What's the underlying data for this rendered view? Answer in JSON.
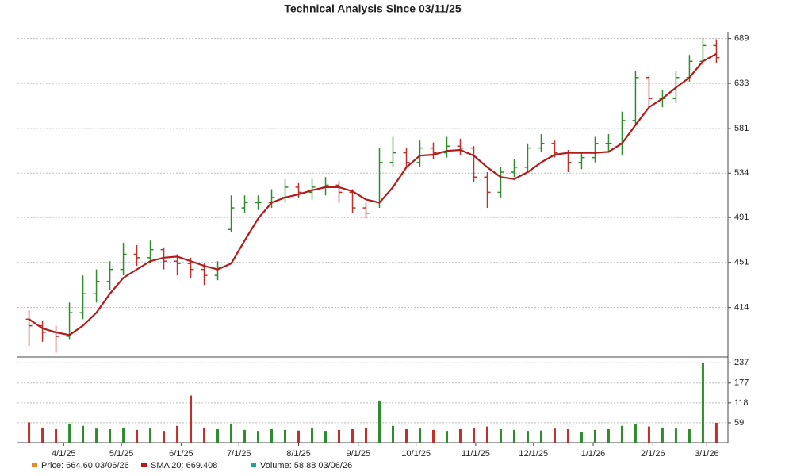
{
  "chart_data": {
    "type": "ohlc",
    "title": "Technical Analysis Since 03/11/25",
    "x": [
      "2025-03-14",
      "2025-03-21",
      "2025-03-28",
      "2025-04-04",
      "2025-04-11",
      "2025-04-18",
      "2025-04-25",
      "2025-05-02",
      "2025-05-09",
      "2025-05-16",
      "2025-05-23",
      "2025-05-30",
      "2025-06-06",
      "2025-06-13",
      "2025-06-20",
      "2025-06-27",
      "2025-07-04",
      "2025-07-11",
      "2025-07-18",
      "2025-07-25",
      "2025-08-01",
      "2025-08-08",
      "2025-08-15",
      "2025-08-22",
      "2025-08-29",
      "2025-09-05",
      "2025-09-12",
      "2025-09-19",
      "2025-09-26",
      "2025-10-03",
      "2025-10-10",
      "2025-10-17",
      "2025-10-24",
      "2025-10-31",
      "2025-11-07",
      "2025-11-14",
      "2025-11-21",
      "2025-11-28",
      "2025-12-05",
      "2025-12-12",
      "2025-12-19",
      "2025-12-26",
      "2026-01-02",
      "2026-01-09",
      "2026-01-16",
      "2026-01-23",
      "2026-01-30",
      "2026-02-06",
      "2026-02-13",
      "2026-02-20",
      "2026-02-27",
      "2026-03-06"
    ],
    "open": [
      405,
      400,
      395,
      392,
      410,
      425,
      435,
      445,
      458,
      455,
      462,
      452,
      450,
      445,
      440,
      480,
      500,
      505,
      505,
      510,
      520,
      515,
      520,
      522,
      515,
      500,
      505,
      545,
      555,
      545,
      560,
      555,
      562,
      560,
      530,
      515,
      535,
      540,
      560,
      565,
      555,
      545,
      550,
      565,
      565,
      590,
      640,
      615,
      615,
      640,
      660,
      680
    ],
    "high": [
      412,
      404,
      400,
      418,
      440,
      445,
      452,
      468,
      466,
      470,
      464,
      458,
      455,
      450,
      452,
      512,
      512,
      512,
      518,
      528,
      524,
      528,
      530,
      526,
      518,
      505,
      560,
      572,
      560,
      568,
      566,
      572,
      570,
      562,
      535,
      540,
      548,
      565,
      575,
      568,
      558,
      556,
      572,
      575,
      600,
      648,
      642,
      625,
      648,
      668,
      690,
      688
    ],
    "low": [
      385,
      388,
      380,
      390,
      405,
      418,
      428,
      440,
      448,
      450,
      445,
      440,
      438,
      432,
      436,
      478,
      495,
      498,
      500,
      505,
      510,
      508,
      512,
      505,
      495,
      490,
      500,
      540,
      540,
      540,
      548,
      550,
      552,
      525,
      500,
      510,
      530,
      535,
      556,
      550,
      535,
      538,
      545,
      555,
      552,
      585,
      605,
      605,
      610,
      635,
      655,
      658
    ],
    "close": [
      400,
      395,
      392,
      410,
      425,
      435,
      445,
      458,
      455,
      462,
      452,
      450,
      445,
      440,
      447,
      500,
      505,
      505,
      510,
      520,
      515,
      520,
      522,
      515,
      500,
      495,
      545,
      555,
      545,
      560,
      555,
      562,
      560,
      530,
      515,
      535,
      540,
      560,
      565,
      555,
      545,
      550,
      565,
      565,
      590,
      640,
      615,
      615,
      640,
      660,
      680,
      664.6
    ],
    "up_color": "#2e8b2e",
    "down_color": "#c0302a",
    "sma": {
      "color": "#b01c1c",
      "values": [
        405,
        398,
        395,
        393,
        400,
        410,
        425,
        438,
        445,
        452,
        455,
        456,
        452,
        448,
        445,
        450,
        470,
        490,
        505,
        510,
        513,
        517,
        520,
        520,
        516,
        508,
        505,
        520,
        540,
        552,
        553,
        557,
        558,
        552,
        540,
        530,
        528,
        535,
        545,
        553,
        555,
        555,
        555,
        556,
        565,
        585,
        605,
        615,
        628,
        640,
        660,
        669.408
      ]
    },
    "volume": {
      "values": [
        60,
        45,
        40,
        55,
        50,
        42,
        40,
        45,
        38,
        42,
        35,
        50,
        140,
        45,
        40,
        55,
        38,
        35,
        40,
        38,
        36,
        42,
        35,
        38,
        40,
        45,
        125,
        50,
        40,
        42,
        38,
        35,
        40,
        45,
        48,
        40,
        38,
        35,
        36,
        42,
        40,
        32,
        38,
        40,
        50,
        55,
        48,
        45,
        42,
        40,
        237,
        58.88
      ],
      "ylim": [
        0,
        240
      ],
      "yticks": [
        59,
        118,
        177,
        237
      ]
    },
    "ylim": [
      377,
      698
    ],
    "yticks": [
      414,
      451,
      491,
      534,
      581,
      633,
      689
    ],
    "log_scale": true,
    "grid": true,
    "xlim": [
      "2025-03-08",
      "2026-03-12"
    ],
    "xticks": [
      {
        "value": "2025-04-01",
        "label": "4/1/25"
      },
      {
        "value": "2025-05-01",
        "label": "5/1/25"
      },
      {
        "value": "2025-06-01",
        "label": "6/1/25"
      },
      {
        "value": "2025-07-01",
        "label": "7/1/25"
      },
      {
        "value": "2025-08-01",
        "label": "8/1/25"
      },
      {
        "value": "2025-09-01",
        "label": "9/1/25"
      },
      {
        "value": "2025-10-01",
        "label": "10/1/25"
      },
      {
        "value": "2025-11-01",
        "label": "11/1/25"
      },
      {
        "value": "2025-12-01",
        "label": "12/1/25"
      },
      {
        "value": "2026-01-01",
        "label": "1/1/26"
      },
      {
        "value": "2026-02-01",
        "label": "2/1/26"
      },
      {
        "value": "2026-03-01",
        "label": "3/1/26"
      }
    ],
    "legend": [
      {
        "label": "Price: 664.60  03/06/26",
        "color": "#e8892b"
      },
      {
        "label": "SMA 20: 669.408",
        "color": "#b01c1c"
      },
      {
        "label": "Volume: 58.88  03/06/26",
        "color": "#1aa39a"
      }
    ]
  }
}
